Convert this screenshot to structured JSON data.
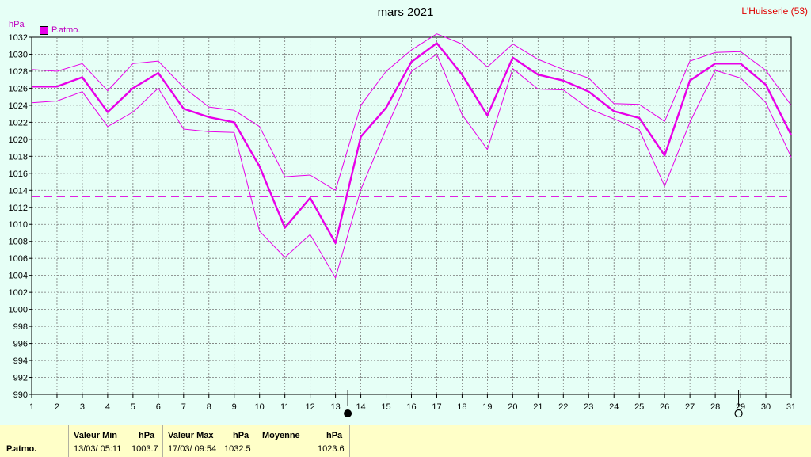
{
  "header": {
    "title": "mars 2021",
    "station": "L'Huisserie (53)",
    "unit": "hPa"
  },
  "legend": {
    "label": "P.atmo.",
    "color": "#e800e8"
  },
  "moon_phases": {
    "new_moon_day": 13,
    "full_moon_day": 29
  },
  "chart_data": {
    "type": "line",
    "ylabel": "hPa",
    "ylim": [
      990,
      1032
    ],
    "y_ticks": [
      990,
      992,
      994,
      996,
      998,
      1000,
      1002,
      1004,
      1006,
      1008,
      1010,
      1012,
      1014,
      1016,
      1018,
      1020,
      1022,
      1024,
      1026,
      1028,
      1030,
      1032
    ],
    "x": [
      1,
      2,
      3,
      4,
      5,
      6,
      7,
      8,
      9,
      10,
      11,
      12,
      13,
      14,
      15,
      16,
      17,
      18,
      19,
      20,
      21,
      22,
      23,
      24,
      25,
      26,
      27,
      28,
      29,
      30,
      31
    ],
    "grid": true,
    "series": [
      {
        "role": "mean",
        "values": [
          1026.2,
          1026.2,
          1027.3,
          1023.2,
          1026.0,
          1027.8,
          1023.6,
          1022.6,
          1022.0,
          1016.8,
          1009.6,
          1013.1,
          1007.8,
          1020.3,
          1023.7,
          1029.1,
          1031.3,
          1027.6,
          1022.8,
          1029.6,
          1027.6,
          1026.9,
          1025.6,
          1023.3,
          1022.5,
          1018.1,
          1026.9,
          1028.9,
          1028.9,
          1026.4,
          1020.5
        ]
      },
      {
        "role": "max",
        "values": [
          1028.2,
          1028.0,
          1028.9,
          1025.7,
          1028.9,
          1029.2,
          1026.1,
          1023.8,
          1023.4,
          1021.5,
          1015.6,
          1015.8,
          1014.0,
          1024.0,
          1028.0,
          1030.5,
          1032.4,
          1031.2,
          1028.5,
          1031.2,
          1029.4,
          1028.2,
          1027.2,
          1024.2,
          1024.1,
          1022.1,
          1029.2,
          1030.2,
          1030.3,
          1028.1,
          1024.0
        ]
      },
      {
        "role": "min",
        "values": [
          1024.3,
          1024.5,
          1025.6,
          1021.5,
          1023.2,
          1026.0,
          1021.2,
          1020.9,
          1020.8,
          1009.2,
          1006.1,
          1008.8,
          1003.7,
          1014.1,
          1021.2,
          1028.0,
          1030.0,
          1022.9,
          1018.8,
          1028.3,
          1025.9,
          1025.8,
          1023.6,
          1022.4,
          1021.1,
          1014.5,
          1022.0,
          1028.1,
          1027.2,
          1024.3,
          1017.9
        ]
      }
    ],
    "reference_line": 1013.25
  },
  "footer": {
    "row_label": "P.atmo.",
    "min_header": "Valeur Min",
    "min_unit": "hPa",
    "min_date": "13/03/  05:11",
    "min_value": "1003.7",
    "max_header": "Valeur Max",
    "max_unit": "hPa",
    "max_date": "17/03/  09:54",
    "max_value": "1032.5",
    "mean_header": "Moyenne",
    "mean_unit": "hPa",
    "mean_value": "1023.6"
  }
}
